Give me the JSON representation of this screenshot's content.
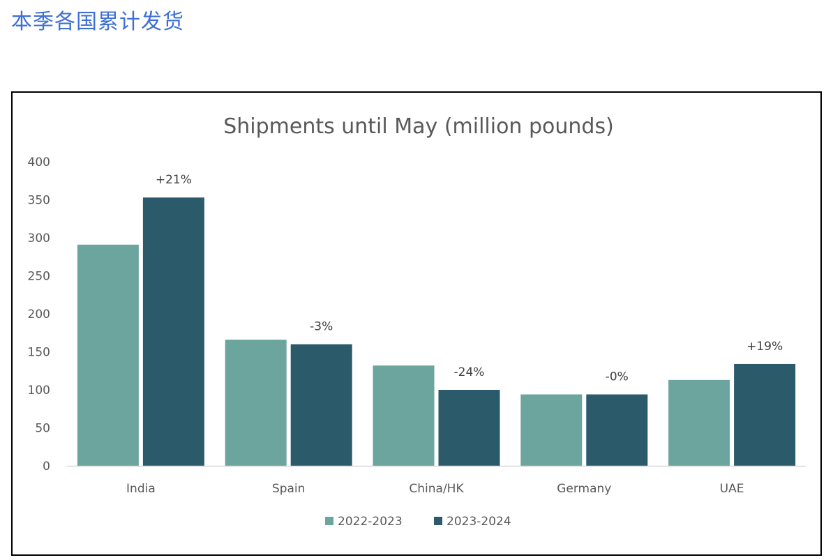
{
  "page": {
    "heading": "本季各国累计发货"
  },
  "chart_data": {
    "type": "bar",
    "title": "Shipments until May (million pounds)",
    "xlabel": "",
    "ylabel": "",
    "ylim": [
      0,
      400
    ],
    "yticks": [
      0,
      50,
      100,
      150,
      200,
      250,
      300,
      350,
      400
    ],
    "ytick_labels": [
      "0",
      "50",
      "100",
      "150",
      "200",
      "250",
      "300",
      "350",
      "400"
    ],
    "categories": [
      "India",
      "Spain",
      "China/HK",
      "Germany",
      "UAE"
    ],
    "series": [
      {
        "name": "2022-2023",
        "color": "#6ba59e",
        "values": [
          291,
          166,
          132,
          94,
          113
        ]
      },
      {
        "name": "2023-2024",
        "color": "#2b5a6b",
        "values": [
          353,
          160,
          100,
          94,
          134
        ]
      }
    ],
    "data_labels": [
      "+21%",
      "-3%",
      "-24%",
      "-0%",
      "+19%"
    ],
    "legend_position": "bottom",
    "grid": false
  }
}
